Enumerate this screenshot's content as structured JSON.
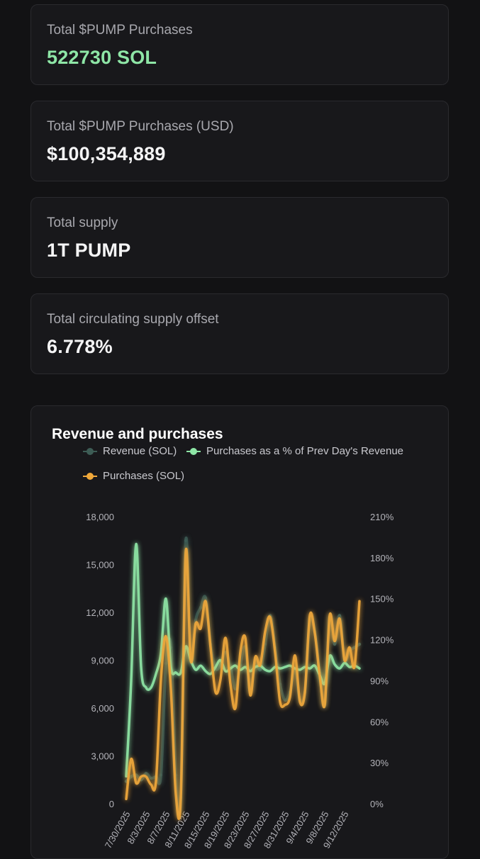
{
  "stats": [
    {
      "label": "Total $PUMP Purchases",
      "value": "522730 SOL",
      "accent": "#8ee6a6"
    },
    {
      "label": "Total $PUMP Purchases (USD)",
      "value": "$100,354,889"
    },
    {
      "label": "Total supply",
      "value": "1T PUMP"
    },
    {
      "label": "Total circulating supply offset",
      "value": "6.778%"
    }
  ],
  "chart": {
    "title": "Revenue and purchases",
    "legend": [
      {
        "label": "Revenue (SOL)",
        "color": "#3d5c55"
      },
      {
        "label": "Purchases as a % of Prev Day's Revenue",
        "color": "#8ee6a6"
      },
      {
        "label": "Purchases (SOL)",
        "color": "#f0a83a"
      }
    ]
  },
  "chart_data": {
    "type": "line",
    "title": "Revenue and purchases",
    "x": [
      "7/30/2025",
      "7/31/2025",
      "8/1/2025",
      "8/2/2025",
      "8/3/2025",
      "8/4/2025",
      "8/5/2025",
      "8/6/2025",
      "8/7/2025",
      "8/8/2025",
      "8/9/2025",
      "8/10/2025",
      "8/11/2025",
      "8/12/2025",
      "8/13/2025",
      "8/14/2025",
      "8/15/2025",
      "8/16/2025",
      "8/17/2025",
      "8/18/2025",
      "8/19/2025",
      "8/20/2025",
      "8/21/2025",
      "8/22/2025",
      "8/23/2025",
      "8/24/2025",
      "8/25/2025",
      "8/26/2025",
      "8/27/2025",
      "8/28/2025",
      "8/29/2025",
      "8/30/2025",
      "8/31/2025",
      "9/1/2025",
      "9/2/2025",
      "9/3/2025",
      "9/4/2025",
      "9/5/2025",
      "9/6/2025",
      "9/7/2025",
      "9/8/2025",
      "9/9/2025",
      "9/10/2025",
      "9/11/2025",
      "9/12/2025",
      "9/13/2025",
      "9/14/2025",
      "9/15/2025"
    ],
    "x_tick_labels": [
      "7/30/2025",
      "8/3/2025",
      "8/7/2025",
      "8/11/2025",
      "8/15/2025",
      "8/19/2025",
      "8/23/2025",
      "8/27/2025",
      "8/31/2025",
      "9/4/2025",
      "9/8/2025",
      "9/12/2025"
    ],
    "y_left": {
      "ticks": [
        0,
        3000,
        6000,
        9000,
        12000,
        15000,
        18000
      ],
      "tick_labels": [
        "0",
        "3,000",
        "6,000",
        "9,000",
        "12,000",
        "15,000",
        "18,000"
      ],
      "ylim": [
        0,
        18000
      ]
    },
    "y_right": {
      "ticks": [
        0,
        30,
        60,
        90,
        120,
        150,
        180,
        210
      ],
      "tick_labels": [
        "0%",
        "30%",
        "60%",
        "90%",
        "120%",
        "150%",
        "180%",
        "210%"
      ],
      "ylim": [
        0,
        210
      ]
    },
    "series": [
      {
        "name": "Revenue (SOL)",
        "axis": "left",
        "color": "#3d5c55",
        "values": [
          1400,
          1700,
          1800,
          1500,
          1900,
          1600,
          1700,
          1800,
          8800,
          9800,
          1800,
          400,
          16500,
          9000,
          11500,
          12300,
          12900,
          10000,
          8500,
          8700,
          9500,
          8600,
          7200,
          8700,
          9800,
          7000,
          9000,
          8400,
          10000,
          11800,
          9800,
          7500,
          6500,
          7000,
          8400,
          6500,
          7000,
          11500,
          10800,
          8200,
          6200,
          11700,
          10000,
          11800,
          9000,
          9600,
          9800,
          10000
        ]
      },
      {
        "name": "Purchases as a % of Prev Day's Revenue",
        "axis": "right",
        "color": "#8ee6a6",
        "values": [
          20,
          90,
          190,
          100,
          85,
          85,
          95,
          110,
          150,
          100,
          96,
          96,
          115,
          105,
          98,
          101,
          97,
          95,
          100,
          105,
          97,
          99,
          101,
          98,
          100,
          97,
          100,
          101,
          98,
          97,
          100,
          99,
          100,
          101,
          99,
          98,
          100,
          99,
          101,
          94,
          88,
          108,
          102,
          99,
          103,
          100,
          101,
          99
        ]
      },
      {
        "name": "Purchases (SOL)",
        "axis": "left",
        "color": "#f0a83a",
        "values": [
          300,
          2800,
          1300,
          1700,
          1700,
          1200,
          1400,
          7800,
          10500,
          7200,
          600,
          400,
          15800,
          9000,
          11300,
          11000,
          12700,
          9800,
          7000,
          7800,
          10400,
          7500,
          6000,
          9500,
          10400,
          6800,
          9200,
          8700,
          10800,
          11700,
          9500,
          6400,
          6200,
          6700,
          9300,
          6400,
          7000,
          11800,
          10700,
          8000,
          6200,
          11800,
          10200,
          11600,
          9000,
          9800,
          8600,
          12700
        ]
      }
    ],
    "grid": false,
    "legend_position": "top"
  }
}
